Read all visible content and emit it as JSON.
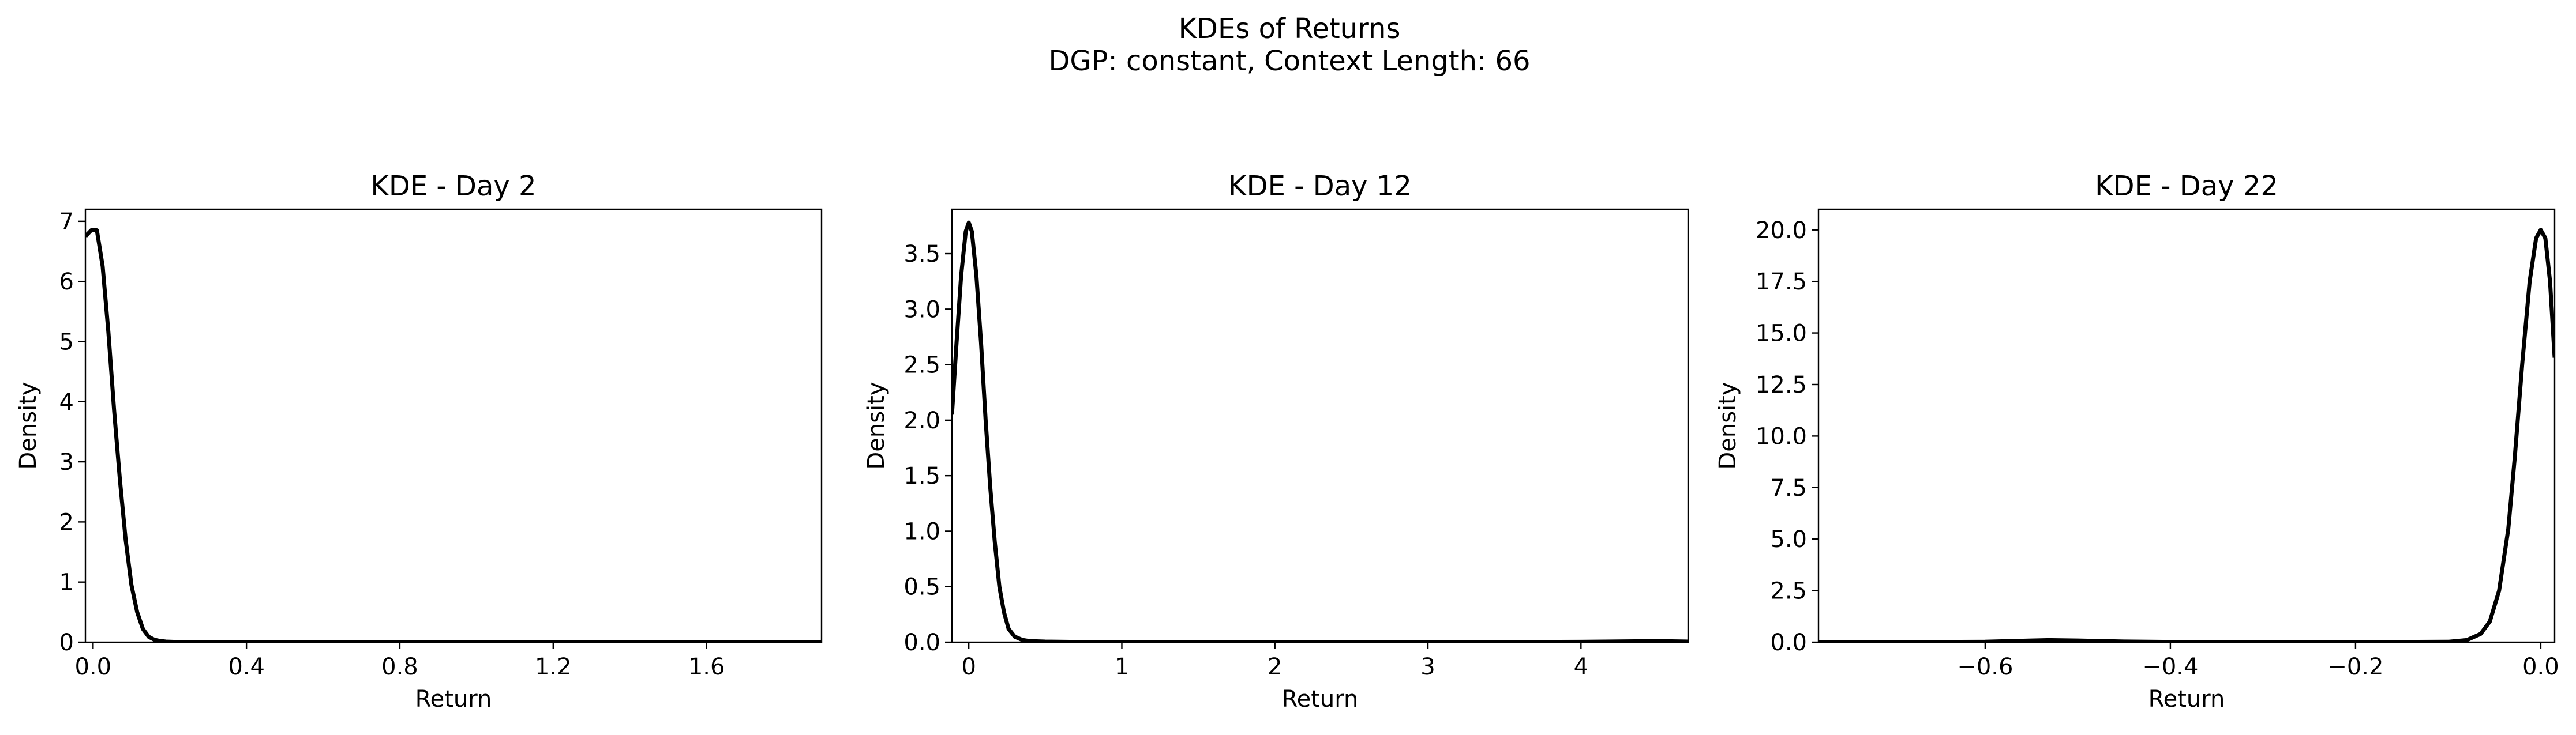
{
  "figure": {
    "suptitle_line1": "KDEs of Returns",
    "suptitle_line2": "DGP: constant, Context Length: 66"
  },
  "chart_data": [
    {
      "type": "line",
      "title": "KDE - Day 2",
      "xlabel": "Return",
      "ylabel": "Density",
      "xlim": [
        -0.02,
        1.9
      ],
      "ylim": [
        0,
        7.2
      ],
      "xticks": [
        0.0,
        0.4,
        0.8,
        1.2,
        1.6
      ],
      "xtick_labels": [
        "0.0",
        "0.4",
        "0.8",
        "1.2",
        "1.6"
      ],
      "yticks": [
        0,
        1,
        2,
        3,
        4,
        5,
        6,
        7
      ],
      "ytick_labels": [
        "0",
        "1",
        "2",
        "3",
        "4",
        "5",
        "6",
        "7"
      ],
      "grid": false,
      "line_color": "#000000",
      "x": [
        -0.02,
        -0.005,
        0.01,
        0.025,
        0.04,
        0.055,
        0.07,
        0.085,
        0.1,
        0.115,
        0.13,
        0.145,
        0.16,
        0.175,
        0.19,
        0.21,
        0.25,
        0.3,
        0.4,
        0.6,
        0.8,
        1.0,
        1.2,
        1.4,
        1.6,
        1.8,
        1.9
      ],
      "y": [
        6.75,
        6.85,
        6.85,
        6.25,
        5.15,
        3.85,
        2.7,
        1.7,
        0.95,
        0.5,
        0.22,
        0.09,
        0.04,
        0.02,
        0.01,
        0.005,
        0.002,
        0.001,
        0.0,
        0.0,
        0.0,
        0.0,
        0.0,
        0.0,
        0.0,
        0.0,
        0.0
      ]
    },
    {
      "type": "line",
      "title": "KDE - Day 12",
      "xlabel": "Return",
      "ylabel": "Density",
      "xlim": [
        -0.11,
        4.7
      ],
      "ylim": [
        0,
        3.9
      ],
      "xticks": [
        0,
        1,
        2,
        3,
        4
      ],
      "xtick_labels": [
        "0",
        "1",
        "2",
        "3",
        "4"
      ],
      "yticks": [
        0.0,
        0.5,
        1.0,
        1.5,
        2.0,
        2.5,
        3.0,
        3.5
      ],
      "ytick_labels": [
        "0.0",
        "0.5",
        "1.0",
        "1.5",
        "2.0",
        "2.5",
        "3.0",
        "3.5"
      ],
      "grid": false,
      "line_color": "#000000",
      "x": [
        -0.11,
        -0.08,
        -0.05,
        -0.02,
        0.0,
        0.02,
        0.05,
        0.08,
        0.11,
        0.14,
        0.17,
        0.2,
        0.23,
        0.26,
        0.3,
        0.35,
        0.4,
        0.5,
        0.7,
        1.0,
        2.0,
        3.0,
        4.0,
        4.5,
        4.7
      ],
      "y": [
        2.05,
        2.7,
        3.3,
        3.7,
        3.78,
        3.7,
        3.3,
        2.7,
        2.0,
        1.4,
        0.9,
        0.5,
        0.27,
        0.12,
        0.05,
        0.02,
        0.01,
        0.005,
        0.002,
        0.001,
        0.0,
        0.0,
        0.003,
        0.01,
        0.005
      ]
    },
    {
      "type": "line",
      "title": "KDE - Day 22",
      "xlabel": "Return",
      "ylabel": "Density",
      "xlim": [
        -0.78,
        0.015
      ],
      "ylim": [
        0,
        21
      ],
      "xticks": [
        -0.6,
        -0.4,
        -0.2,
        0.0
      ],
      "xtick_labels": [
        "−0.6",
        "−0.4",
        "−0.2",
        "0.0"
      ],
      "yticks": [
        0.0,
        2.5,
        5.0,
        7.5,
        10.0,
        12.5,
        15.0,
        17.5,
        20.0
      ],
      "ytick_labels": [
        "0.0",
        "2.5",
        "5.0",
        "7.5",
        "10.0",
        "12.5",
        "15.0",
        "17.5",
        "20.0"
      ],
      "grid": false,
      "line_color": "#000000",
      "x": [
        -0.78,
        -0.7,
        -0.6,
        -0.55,
        -0.53,
        -0.5,
        -0.45,
        -0.4,
        -0.3,
        -0.2,
        -0.1,
        -0.08,
        -0.065,
        -0.055,
        -0.045,
        -0.035,
        -0.028,
        -0.02,
        -0.012,
        -0.005,
        0.0,
        0.005,
        0.01,
        0.015
      ],
      "y": [
        0.0,
        0.0,
        0.02,
        0.08,
        0.1,
        0.08,
        0.03,
        0.01,
        0.005,
        0.005,
        0.02,
        0.1,
        0.4,
        1.0,
        2.5,
        5.5,
        9.0,
        13.5,
        17.5,
        19.6,
        20.0,
        19.6,
        17.5,
        13.8
      ]
    }
  ]
}
